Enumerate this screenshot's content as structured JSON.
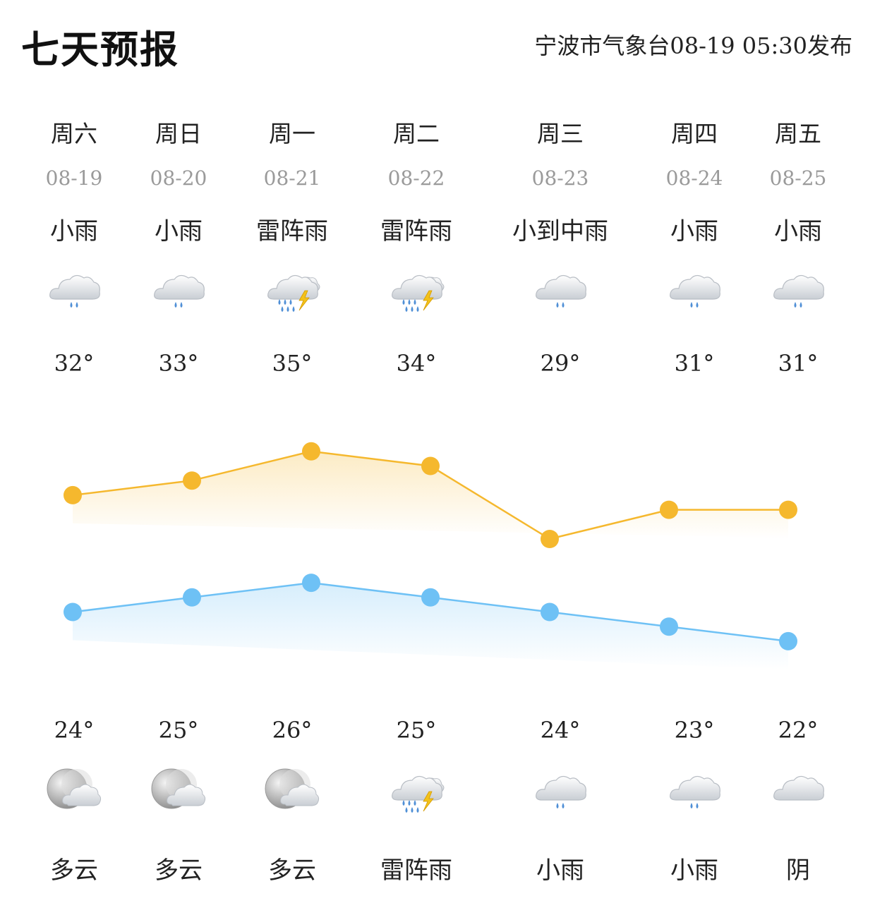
{
  "header": {
    "title": "七天预报",
    "source": "宁波市气象台08-19 05:30发布"
  },
  "colors": {
    "high_line": "#F5B82E",
    "low_line": "#6EC1F5",
    "date_gray": "#9A9A9A"
  },
  "days": [
    {
      "weekday": "周六",
      "date": "08-19",
      "day_weather": "小雨",
      "day_icon": "light-rain-icon",
      "high": "32°",
      "low": "24°",
      "night_icon": "partly-cloudy-night-icon",
      "night_weather": "多云"
    },
    {
      "weekday": "周日",
      "date": "08-20",
      "day_weather": "小雨",
      "day_icon": "light-rain-icon",
      "high": "33°",
      "low": "25°",
      "night_icon": "partly-cloudy-night-icon",
      "night_weather": "多云"
    },
    {
      "weekday": "周一",
      "date": "08-21",
      "day_weather": "雷阵雨",
      "day_icon": "thunderstorm-icon",
      "high": "35°",
      "low": "26°",
      "night_icon": "partly-cloudy-night-icon",
      "night_weather": "多云"
    },
    {
      "weekday": "周二",
      "date": "08-22",
      "day_weather": "雷阵雨",
      "day_icon": "thunderstorm-icon",
      "high": "34°",
      "low": "25°",
      "night_icon": "thunderstorm-icon",
      "night_weather": "雷阵雨"
    },
    {
      "weekday": "周三",
      "date": "08-23",
      "day_weather": "小到中雨",
      "day_icon": "light-rain-icon",
      "high": "29°",
      "low": "24°",
      "night_icon": "light-rain-icon",
      "night_weather": "小雨"
    },
    {
      "weekday": "周四",
      "date": "08-24",
      "day_weather": "小雨",
      "day_icon": "light-rain-icon",
      "high": "31°",
      "low": "23°",
      "night_icon": "light-rain-icon",
      "night_weather": "小雨"
    },
    {
      "weekday": "周五",
      "date": "08-25",
      "day_weather": "小雨",
      "day_icon": "light-rain-icon",
      "high": "31°",
      "low": "22°",
      "night_icon": "overcast-icon",
      "night_weather": "阴"
    }
  ],
  "chart_data": {
    "type": "line",
    "categories": [
      "08-19",
      "08-20",
      "08-21",
      "08-22",
      "08-23",
      "08-24",
      "08-25"
    ],
    "series": [
      {
        "values": [
          32,
          33,
          35,
          34,
          29,
          31,
          31
        ],
        "color": "#F5B82E"
      },
      {
        "values": [
          24,
          25,
          26,
          25,
          24,
          23,
          22
        ],
        "color": "#6EC1F5"
      }
    ],
    "grid": false
  }
}
